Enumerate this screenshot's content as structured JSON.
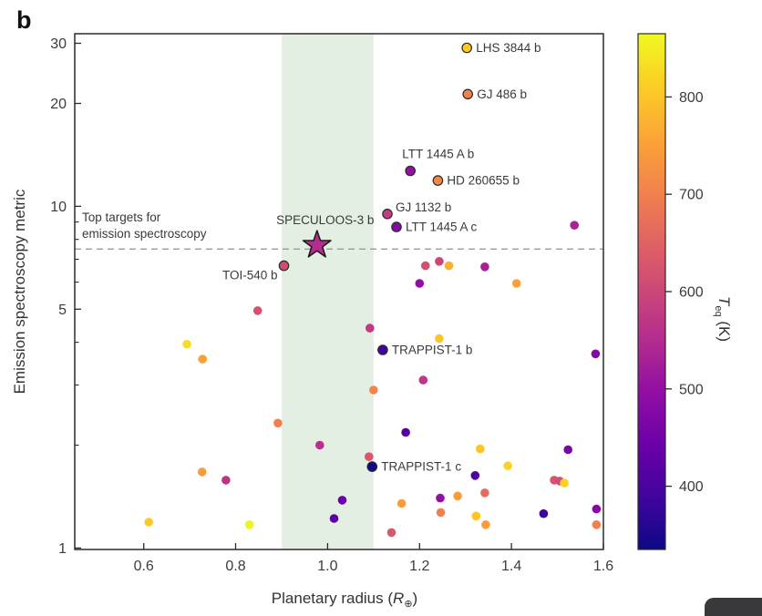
{
  "panel_label": "b",
  "colors": {
    "band_green": "#e4efe4",
    "dashed_line": "#9b9b9b",
    "axis": "#2b2b2b",
    "star_fill": "#b42d8d",
    "corner_button": "#39393b"
  },
  "chart_data": {
    "type": "scatter",
    "xlabel": "Planetary radius (R⊕)",
    "xlabel_parts": {
      "prefix": "Planetary radius (",
      "symbol": "R",
      "subscript": "⊕",
      "suffix": ")"
    },
    "ylabel": "Emission spectroscopy metric",
    "xlim": [
      0.45,
      1.6
    ],
    "ylim": [
      0.99,
      32
    ],
    "yscale": "log",
    "grid": false,
    "x_ticks": [
      0.6,
      0.8,
      1.0,
      1.2,
      1.4,
      1.6
    ],
    "x_tick_labels": [
      "0.6",
      "0.8",
      "1.0",
      "1.2",
      "1.4",
      "1.6"
    ],
    "y_ticks": [
      1,
      5,
      10,
      20,
      30
    ],
    "y_tick_labels": [
      "1",
      "5",
      "10",
      "20",
      "30"
    ],
    "y_minor_ticks": [
      2,
      3,
      4,
      6,
      7,
      8,
      9
    ],
    "highlight_band": {
      "x_min": 0.9,
      "x_max": 1.1,
      "color": "#e4efe4"
    },
    "threshold_line": {
      "esm": 7.5,
      "style": "dashed",
      "label_line1": "Top targets for",
      "label_line2": "emission spectroscopy"
    },
    "colorbar": {
      "label": "T_eq (K)",
      "label_parts": {
        "symbol": "T",
        "subscript": "eq",
        "suffix": " (K)"
      },
      "ticks": [
        400,
        500,
        600,
        700,
        800
      ],
      "tick_labels": [
        "400",
        "500",
        "600",
        "700",
        "800"
      ],
      "vmin": 335,
      "vmax": 865,
      "colormap": "plasma",
      "position": "right"
    },
    "star_point": {
      "name": "SPECULOOS-3 b",
      "radius_Rearth": 0.977,
      "esm": 7.7,
      "t_eq_K": 553
    },
    "labeled_points": [
      {
        "name": "LHS 3844 b",
        "radius_Rearth": 1.303,
        "esm": 29.1,
        "t_eq_K": 805,
        "label_side": "right"
      },
      {
        "name": "GJ 486 b",
        "radius_Rearth": 1.305,
        "esm": 21.3,
        "t_eq_K": 700,
        "label_side": "right"
      },
      {
        "name": "LTT 1445 A b",
        "radius_Rearth": 1.18,
        "esm": 12.7,
        "t_eq_K": 500,
        "label_side": "above-left"
      },
      {
        "name": "HD 260655 b",
        "radius_Rearth": 1.24,
        "esm": 11.9,
        "t_eq_K": 710,
        "label_side": "right"
      },
      {
        "name": "GJ 1132 b",
        "radius_Rearth": 1.13,
        "esm": 9.5,
        "t_eq_K": 580,
        "label_side": "right-above"
      },
      {
        "name": "LTT 1445 A c",
        "radius_Rearth": 1.15,
        "esm": 8.7,
        "t_eq_K": 480,
        "label_side": "right"
      },
      {
        "name": "TOI-540 b",
        "radius_Rearth": 0.905,
        "esm": 6.7,
        "t_eq_K": 611,
        "label_side": "left-below"
      },
      {
        "name": "TRAPPIST-1 b",
        "radius_Rearth": 1.12,
        "esm": 3.8,
        "t_eq_K": 390,
        "label_side": "right"
      },
      {
        "name": "TRAPPIST-1 c",
        "radius_Rearth": 1.097,
        "esm": 1.73,
        "t_eq_K": 340,
        "label_side": "right"
      }
    ],
    "points_format": [
      "radius_Rearth",
      "esm",
      "t_eq_K"
    ],
    "points": [
      [
        1.213,
        6.7,
        615
      ],
      [
        1.243,
        6.9,
        600
      ],
      [
        1.264,
        6.7,
        775
      ],
      [
        1.342,
        6.65,
        530
      ],
      [
        1.2,
        5.95,
        495
      ],
      [
        1.411,
        5.95,
        750
      ],
      [
        1.537,
        8.8,
        535
      ],
      [
        0.848,
        4.95,
        620
      ],
      [
        1.092,
        4.4,
        575
      ],
      [
        0.694,
        3.95,
        830
      ],
      [
        0.728,
        3.57,
        750
      ],
      [
        1.243,
        4.1,
        800
      ],
      [
        1.583,
        3.7,
        480
      ],
      [
        1.208,
        3.1,
        570
      ],
      [
        1.1,
        2.9,
        710
      ],
      [
        0.892,
        2.32,
        700
      ],
      [
        0.983,
        2.0,
        560
      ],
      [
        1.09,
        1.85,
        630
      ],
      [
        1.17,
        2.18,
        410
      ],
      [
        1.332,
        1.95,
        800
      ],
      [
        1.523,
        1.94,
        465
      ],
      [
        1.392,
        1.74,
        820
      ],
      [
        1.321,
        1.63,
        405
      ],
      [
        1.493,
        1.58,
        625
      ],
      [
        1.505,
        1.57,
        615
      ],
      [
        1.515,
        1.55,
        815
      ],
      [
        1.342,
        1.45,
        665
      ],
      [
        1.161,
        1.35,
        745
      ],
      [
        1.245,
        1.4,
        500
      ],
      [
        1.283,
        1.42,
        745
      ],
      [
        1.246,
        1.27,
        700
      ],
      [
        1.323,
        1.24,
        800
      ],
      [
        1.344,
        1.17,
        745
      ],
      [
        1.47,
        1.26,
        385
      ],
      [
        1.585,
        1.3,
        480
      ],
      [
        1.585,
        1.17,
        700
      ],
      [
        1.139,
        1.11,
        630
      ],
      [
        0.727,
        1.67,
        745
      ],
      [
        0.779,
        1.58,
        565
      ],
      [
        1.032,
        1.38,
        440
      ],
      [
        1.014,
        1.22,
        420
      ],
      [
        0.611,
        1.19,
        805
      ],
      [
        0.83,
        1.17,
        855
      ]
    ]
  }
}
